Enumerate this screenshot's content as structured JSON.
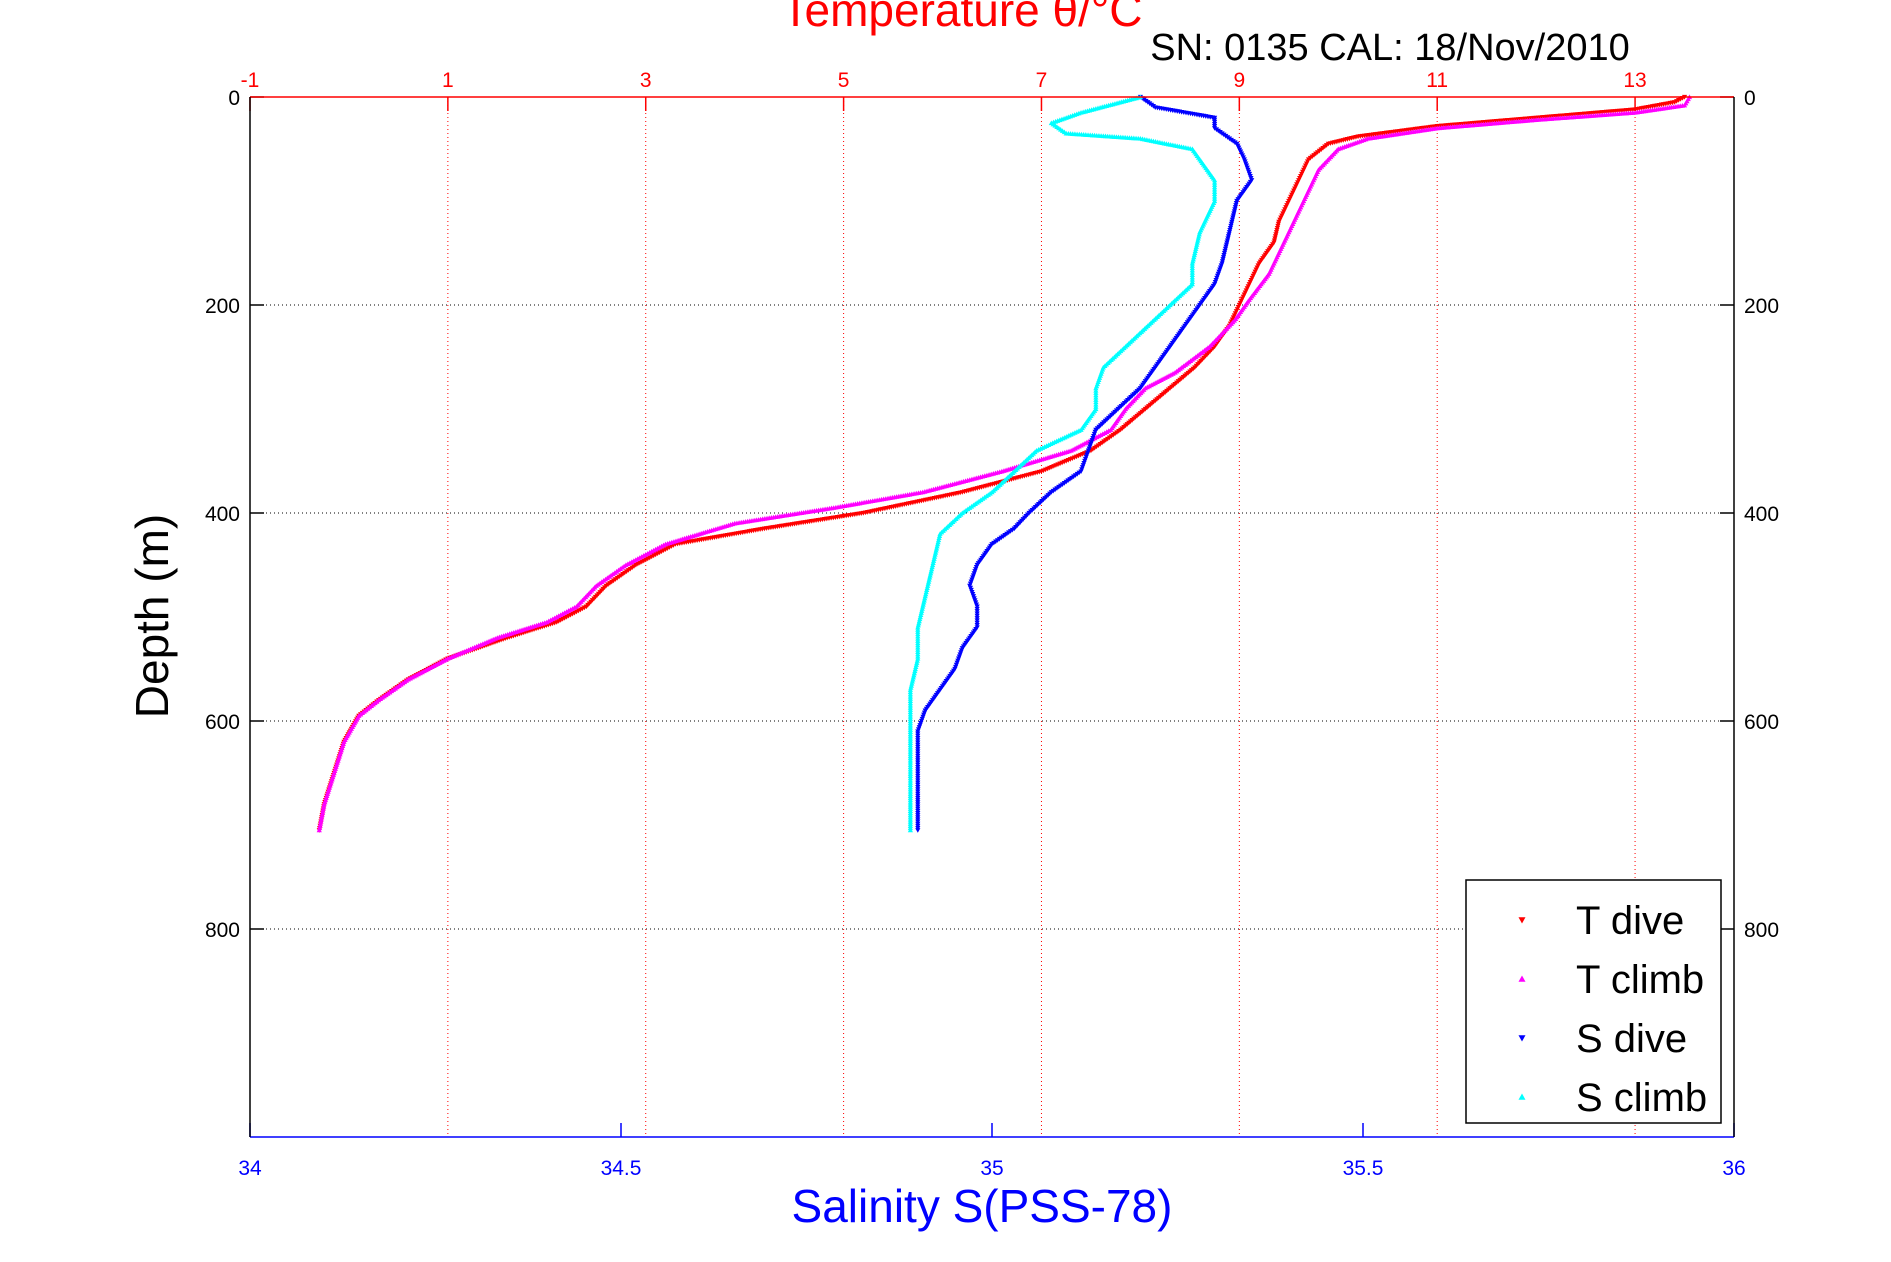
{
  "chart_data": {
    "type": "scatter",
    "title_top": "Temperature θ/°C",
    "subtitle": "SN: 0135  CAL: 18/Nov/2010",
    "xlabel": "Salinity S(PSS-78)",
    "ylabel": "Depth (m)",
    "depth_axis": {
      "range": [
        0,
        1000
      ],
      "reversed": true,
      "ticks": [
        0,
        200,
        400,
        600,
        800
      ]
    },
    "salinity_axis": {
      "range": [
        34,
        36
      ],
      "ticks": [
        "34",
        "34.5",
        "35",
        "35.5",
        "36"
      ],
      "color": "#0000ff"
    },
    "temperature_axis": {
      "range": [
        -1,
        14
      ],
      "ticks": [
        "-1",
        "1",
        "3",
        "5",
        "7",
        "9",
        "11",
        "13"
      ],
      "color": "#ff0000"
    },
    "grid": true,
    "legend_position": "bottom-right",
    "series": [
      {
        "name": "T dive",
        "axis": "temperature",
        "color": "#ff0000",
        "marker": "triangle-down",
        "points": [
          [
            13.5,
            0
          ],
          [
            13.4,
            5
          ],
          [
            13.0,
            12
          ],
          [
            12.0,
            20
          ],
          [
            11.0,
            28
          ],
          [
            10.2,
            38
          ],
          [
            9.9,
            45
          ],
          [
            9.7,
            60
          ],
          [
            9.6,
            80
          ],
          [
            9.5,
            100
          ],
          [
            9.4,
            120
          ],
          [
            9.35,
            140
          ],
          [
            9.2,
            160
          ],
          [
            9.1,
            180
          ],
          [
            9.0,
            200
          ],
          [
            8.9,
            220
          ],
          [
            8.75,
            240
          ],
          [
            8.55,
            260
          ],
          [
            8.3,
            280
          ],
          [
            8.05,
            300
          ],
          [
            7.8,
            320
          ],
          [
            7.5,
            340
          ],
          [
            7.0,
            360
          ],
          [
            6.2,
            380
          ],
          [
            5.2,
            400
          ],
          [
            4.2,
            415
          ],
          [
            3.3,
            430
          ],
          [
            2.9,
            450
          ],
          [
            2.6,
            470
          ],
          [
            2.4,
            490
          ],
          [
            2.1,
            505
          ],
          [
            1.6,
            520
          ],
          [
            1.0,
            540
          ],
          [
            0.6,
            560
          ],
          [
            0.3,
            580
          ],
          [
            0.1,
            595
          ],
          [
            -0.05,
            620
          ],
          [
            -0.15,
            650
          ],
          [
            -0.25,
            680
          ],
          [
            -0.3,
            705
          ]
        ]
      },
      {
        "name": "T climb",
        "axis": "temperature",
        "color": "#ff00ff",
        "marker": "triangle-up",
        "points": [
          [
            13.55,
            0
          ],
          [
            13.5,
            8
          ],
          [
            13.0,
            15
          ],
          [
            12.0,
            22
          ],
          [
            11.0,
            30
          ],
          [
            10.3,
            40
          ],
          [
            10.0,
            50
          ],
          [
            9.8,
            70
          ],
          [
            9.7,
            90
          ],
          [
            9.6,
            110
          ],
          [
            9.5,
            130
          ],
          [
            9.4,
            150
          ],
          [
            9.3,
            170
          ],
          [
            9.1,
            195
          ],
          [
            8.95,
            215
          ],
          [
            8.7,
            240
          ],
          [
            8.35,
            265
          ],
          [
            8.05,
            280
          ],
          [
            7.85,
            300
          ],
          [
            7.7,
            320
          ],
          [
            7.3,
            340
          ],
          [
            6.6,
            360
          ],
          [
            5.8,
            380
          ],
          [
            4.9,
            395
          ],
          [
            3.9,
            410
          ],
          [
            3.2,
            430
          ],
          [
            2.8,
            450
          ],
          [
            2.5,
            470
          ],
          [
            2.3,
            490
          ],
          [
            2.0,
            505
          ],
          [
            1.5,
            520
          ],
          [
            1.0,
            540
          ],
          [
            0.6,
            560
          ],
          [
            0.3,
            580
          ],
          [
            0.1,
            595
          ],
          [
            -0.05,
            620
          ],
          [
            -0.15,
            650
          ],
          [
            -0.25,
            680
          ],
          [
            -0.3,
            705
          ]
        ]
      },
      {
        "name": "S dive",
        "axis": "salinity",
        "color": "#0000ff",
        "marker": "triangle-down",
        "points": [
          [
            35.2,
            0
          ],
          [
            35.22,
            10
          ],
          [
            35.3,
            20
          ],
          [
            35.3,
            30
          ],
          [
            35.33,
            45
          ],
          [
            35.34,
            60
          ],
          [
            35.35,
            80
          ],
          [
            35.33,
            100
          ],
          [
            35.32,
            130
          ],
          [
            35.31,
            160
          ],
          [
            35.3,
            180
          ],
          [
            35.28,
            200
          ],
          [
            35.26,
            220
          ],
          [
            35.24,
            240
          ],
          [
            35.22,
            260
          ],
          [
            35.2,
            280
          ],
          [
            35.17,
            300
          ],
          [
            35.14,
            320
          ],
          [
            35.13,
            340
          ],
          [
            35.12,
            360
          ],
          [
            35.08,
            380
          ],
          [
            35.05,
            400
          ],
          [
            35.03,
            415
          ],
          [
            35.0,
            430
          ],
          [
            34.98,
            450
          ],
          [
            34.97,
            470
          ],
          [
            34.98,
            490
          ],
          [
            34.98,
            510
          ],
          [
            34.96,
            530
          ],
          [
            34.95,
            550
          ],
          [
            34.93,
            570
          ],
          [
            34.91,
            590
          ],
          [
            34.9,
            610
          ],
          [
            34.9,
            640
          ],
          [
            34.9,
            670
          ],
          [
            34.9,
            705
          ]
        ]
      },
      {
        "name": "S climb",
        "axis": "salinity",
        "color": "#00ffff",
        "marker": "triangle-up",
        "points": [
          [
            35.2,
            0
          ],
          [
            35.12,
            15
          ],
          [
            35.08,
            25
          ],
          [
            35.1,
            35
          ],
          [
            35.2,
            40
          ],
          [
            35.27,
            50
          ],
          [
            35.28,
            60
          ],
          [
            35.3,
            80
          ],
          [
            35.3,
            100
          ],
          [
            35.28,
            130
          ],
          [
            35.27,
            160
          ],
          [
            35.27,
            180
          ],
          [
            35.24,
            200
          ],
          [
            35.21,
            220
          ],
          [
            35.18,
            240
          ],
          [
            35.15,
            260
          ],
          [
            35.14,
            280
          ],
          [
            35.14,
            300
          ],
          [
            35.12,
            320
          ],
          [
            35.06,
            340
          ],
          [
            35.03,
            360
          ],
          [
            35.0,
            380
          ],
          [
            34.96,
            400
          ],
          [
            34.93,
            420
          ],
          [
            34.92,
            450
          ],
          [
            34.91,
            480
          ],
          [
            34.9,
            510
          ],
          [
            34.9,
            540
          ],
          [
            34.89,
            570
          ],
          [
            34.89,
            600
          ],
          [
            34.89,
            640
          ],
          [
            34.89,
            670
          ],
          [
            34.89,
            705
          ]
        ]
      }
    ]
  }
}
